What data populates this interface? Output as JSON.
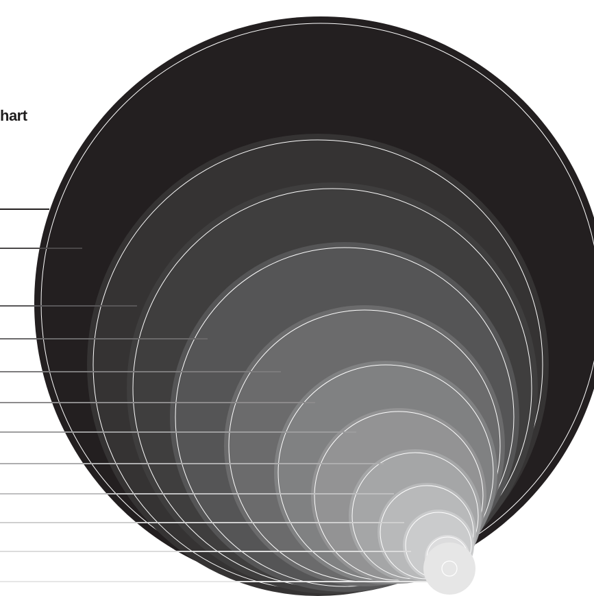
{
  "title": "hart",
  "colors": {
    "background": "#ffffff",
    "outline": "#ffffff",
    "circles": [
      "#231f20",
      "#353333",
      "#3f3e3e",
      "#555556",
      "#6b6b6c",
      "#808182",
      "#939394",
      "#a5a6a7",
      "#b8b9ba",
      "#cacbcc",
      "#dcdcdd",
      "#e6e6e6"
    ],
    "leader_lines": [
      "#4a4748",
      "#585658",
      "#6a696a",
      "#7c7b7c",
      "#8c8b8c",
      "#9d9d9e",
      "#aeaeaf",
      "#bfbfc0",
      "#cfcfcf",
      "#dcdcdc",
      "#e6e6e6"
    ]
  },
  "rings": 12,
  "leaders": 11
}
